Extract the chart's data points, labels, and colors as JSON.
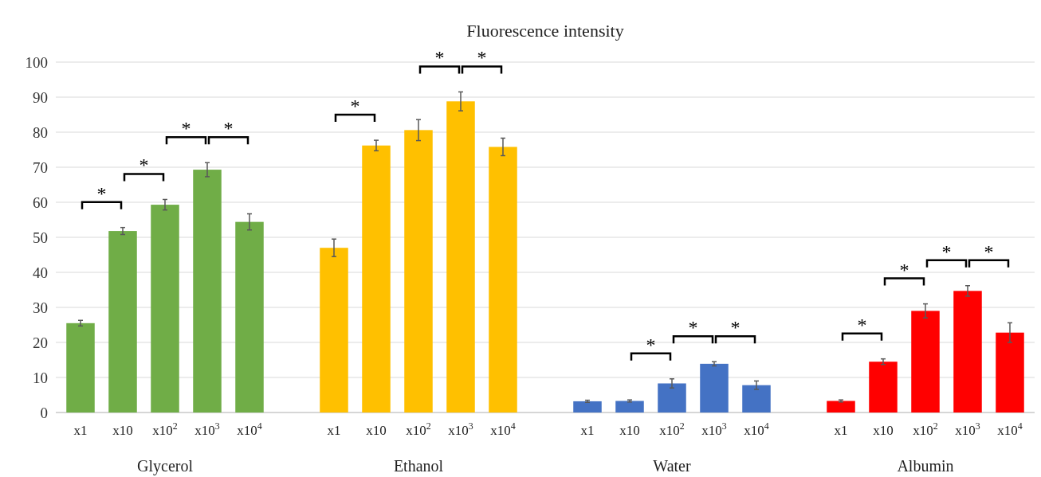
{
  "chart_data": {
    "type": "bar",
    "title": "Fluorescence intensity",
    "categories": [
      "x1",
      "x10",
      "x10$^{2}$",
      "x10$^{3}$",
      "x10$^{4}$",
      null,
      "x1",
      "x10",
      "x10$^{2}$",
      "x10$^{3}$",
      "x10$^{4}$",
      null,
      "x1",
      "x10",
      "x10$^{2}$",
      "x10$^{3}$",
      "x10$^{4}$",
      null,
      "x1",
      "x10",
      "x10$^{2}$",
      "x10$^{3}$",
      "x10$^{4}$"
    ],
    "series": [
      {
        "name": "Glycerol",
        "color": "#70ad47",
        "values": [
          25.5,
          51.8,
          59.3,
          69.3,
          54.4,
          null,
          null,
          null,
          null,
          null,
          null,
          null,
          null,
          null,
          null,
          null,
          null,
          null,
          null,
          null,
          null,
          null,
          null
        ],
        "errors": [
          0.8,
          1,
          1.5,
          2,
          2.3,
          null,
          null,
          null,
          null,
          null,
          null,
          null,
          null,
          null,
          null,
          null,
          null,
          null,
          null,
          null,
          null,
          null,
          null
        ]
      },
      {
        "name": "Ethanol",
        "color": "#ffc000",
        "values": [
          null,
          null,
          null,
          null,
          null,
          null,
          47,
          76.2,
          80.6,
          88.8,
          75.8,
          null,
          null,
          null,
          null,
          null,
          null,
          null,
          null,
          null,
          null,
          null,
          null
        ],
        "errors": [
          null,
          null,
          null,
          null,
          null,
          null,
          2.5,
          1.5,
          3,
          2.7,
          2.5,
          null,
          null,
          null,
          null,
          null,
          null,
          null,
          null,
          null,
          null,
          null,
          null
        ]
      },
      {
        "name": "Water",
        "color": "#4472c4",
        "values": [
          null,
          null,
          null,
          null,
          null,
          null,
          null,
          null,
          null,
          null,
          null,
          null,
          3.2,
          3.3,
          8.3,
          13.9,
          7.8,
          null,
          null,
          null,
          null,
          null,
          null
        ],
        "errors": [
          null,
          null,
          null,
          null,
          null,
          null,
          null,
          null,
          null,
          null,
          null,
          null,
          0.3,
          0.3,
          1.3,
          0.6,
          1.2,
          null,
          null,
          null,
          null,
          null,
          null
        ]
      },
      {
        "name": "Albumin",
        "color": "#ff0000",
        "values": [
          null,
          null,
          null,
          null,
          null,
          null,
          null,
          null,
          null,
          null,
          null,
          null,
          null,
          null,
          null,
          null,
          null,
          null,
          3.3,
          14.5,
          29,
          34.7,
          22.8
        ],
        "errors": [
          null,
          null,
          null,
          null,
          null,
          null,
          null,
          null,
          null,
          null,
          null,
          null,
          null,
          null,
          null,
          null,
          null,
          null,
          0.3,
          0.8,
          2,
          1.5,
          2.8
        ]
      }
    ],
    "ylim": [
      0,
      100
    ],
    "yticks": [
      0,
      10,
      20,
      30,
      40,
      50,
      60,
      70,
      80,
      90,
      100
    ],
    "grid": "y",
    "annotations": [
      "*",
      "*",
      "*",
      "*",
      "*",
      "*",
      "*",
      "*",
      "*",
      "*",
      "*",
      "*",
      "*",
      "*"
    ]
  }
}
